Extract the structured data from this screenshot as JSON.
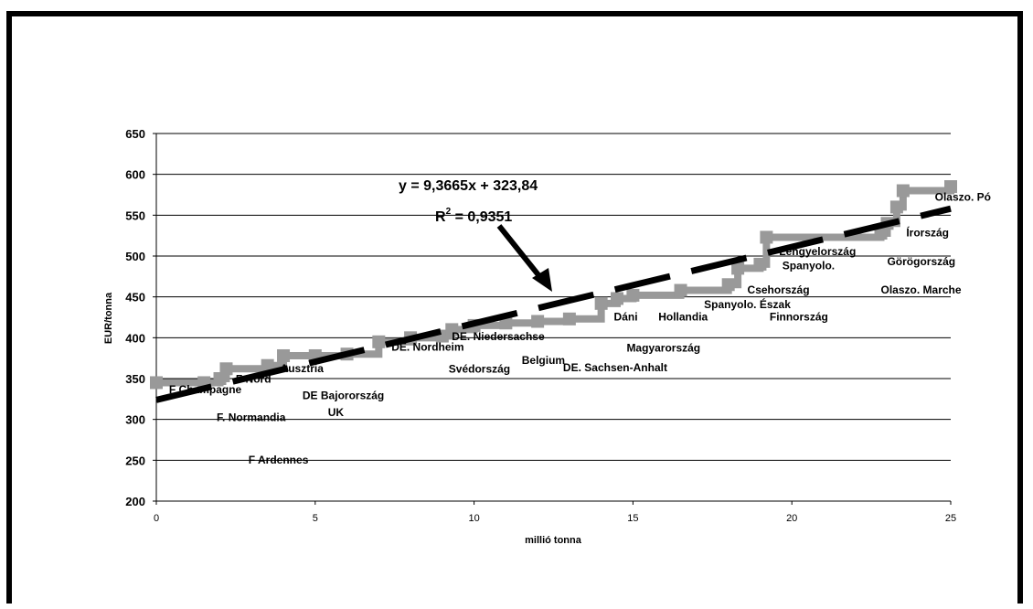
{
  "chart_data": {
    "type": "line",
    "title": "",
    "xlabel": "millió tonna",
    "ylabel": "EUR/tonna",
    "xlim": [
      0,
      25
    ],
    "ylim": [
      200,
      650
    ],
    "x_ticks": [
      "0",
      "5",
      "10",
      "15",
      "20",
      "25"
    ],
    "y_ticks": [
      "200",
      "250",
      "300",
      "350",
      "400",
      "450",
      "500",
      "550",
      "600",
      "650"
    ],
    "grid": "horizontal",
    "series": [
      {
        "color": "#999999",
        "style": "step",
        "x": [
          0,
          1.5,
          2.0,
          2.2,
          3.5,
          4.0,
          5.0,
          6.0,
          7.0,
          8.0,
          9.0,
          9.3,
          10.0,
          11.0,
          12.0,
          13.0,
          14.0,
          14.5,
          15.0,
          16.5,
          18.0,
          18.3,
          19.0,
          19.2,
          22.8,
          23.0,
          23.3,
          23.5,
          25.0
        ],
        "y": [
          345,
          345,
          350,
          362,
          366,
          378,
          378,
          380,
          395,
          400,
          402,
          410,
          415,
          418,
          420,
          423,
          442,
          448,
          452,
          458,
          465,
          485,
          490,
          523,
          528,
          540,
          560,
          580,
          585
        ]
      }
    ],
    "trendline": {
      "color": "#000000",
      "style": "dashed",
      "slope": 9.3665,
      "intercept": 323.84,
      "equation": "y = 9,3665x + 323,84",
      "r2_base": "R",
      "r2_exp": "2",
      "r2_rest": " = 0,9351"
    },
    "annotations": [
      {
        "text": "F Champagne",
        "x": 0.4,
        "y": 332
      },
      {
        "text": "F Nord",
        "x": 2.5,
        "y": 345
      },
      {
        "text": "Ausztria",
        "x": 3.9,
        "y": 358
      },
      {
        "text": "DE Bajorország",
        "x": 4.6,
        "y": 325
      },
      {
        "text": "F. Normandia",
        "x": 1.9,
        "y": 298
      },
      {
        "text": "UK",
        "x": 5.4,
        "y": 304
      },
      {
        "text": "F Ardennes",
        "x": 2.9,
        "y": 246
      },
      {
        "text": "DE. Nordheim",
        "x": 7.4,
        "y": 384
      },
      {
        "text": "DE. Niedersachse",
        "x": 9.3,
        "y": 397
      },
      {
        "text": "Svédország",
        "x": 9.2,
        "y": 357
      },
      {
        "text": "Belgium",
        "x": 11.5,
        "y": 368
      },
      {
        "text": "DE. Sachsen-Anhalt",
        "x": 12.8,
        "y": 359
      },
      {
        "text": "Magyarország",
        "x": 14.8,
        "y": 383,
        "size": "large"
      },
      {
        "text": "Dáni",
        "x": 14.4,
        "y": 421
      },
      {
        "text": "Hollandia",
        "x": 15.8,
        "y": 421
      },
      {
        "text": "Spanyolo. Észak",
        "x": 18.6,
        "y": 436,
        "anchor": "middle"
      },
      {
        "text": "Finnország",
        "x": 19.3,
        "y": 421
      },
      {
        "text": "Csehország",
        "x": 18.6,
        "y": 454
      },
      {
        "text": "Lengyelország",
        "x": 19.6,
        "y": 501
      },
      {
        "text": "Spanyolo.",
        "x": 19.7,
        "y": 484
      },
      {
        "text": "Olaszo. Pó",
        "x": 24.5,
        "y": 568
      },
      {
        "text": "Írország",
        "x": 23.6,
        "y": 524
      },
      {
        "text": "Görögország",
        "x": 23.0,
        "y": 489
      },
      {
        "text": "Olaszo. Marche",
        "x": 22.8,
        "y": 454
      }
    ]
  }
}
